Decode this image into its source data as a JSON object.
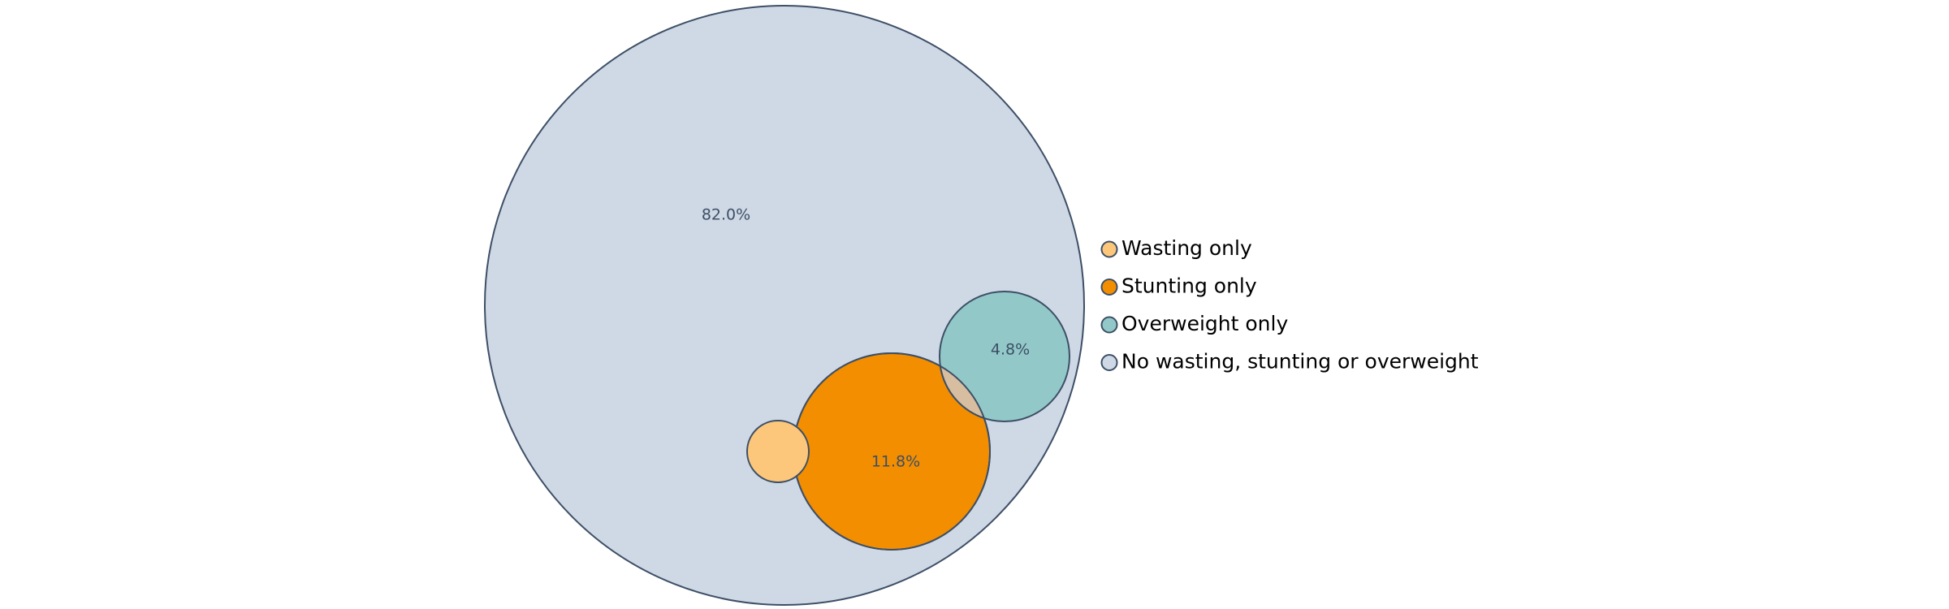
{
  "chart_data": {
    "type": "venn",
    "title": "",
    "outline_color": "#3d4f66",
    "sets": [
      {
        "label": "No wasting, stunting or overweight",
        "color": "#cfd8e5",
        "percent_label": "82.0%"
      },
      {
        "label": "Stunting only",
        "color": "#f28e00",
        "percent_label": "11.8%"
      },
      {
        "label": "Overweight only",
        "color": "#92c9c8",
        "percent_label": "4.8%"
      },
      {
        "label": "Wasting only",
        "color": "#fcc77a",
        "percent_label": ""
      }
    ],
    "overlap_colors": {
      "stunting_overweight": "#d8bea0"
    },
    "legend": {
      "position": "right",
      "entries": [
        {
          "label": "Wasting only",
          "color": "#fcc77a"
        },
        {
          "label": "Stunting only",
          "color": "#f28e00"
        },
        {
          "label": "Overweight only",
          "color": "#92c9c8"
        },
        {
          "label": "No wasting, stunting or overweight",
          "color": "#cfd8e5"
        }
      ]
    }
  }
}
